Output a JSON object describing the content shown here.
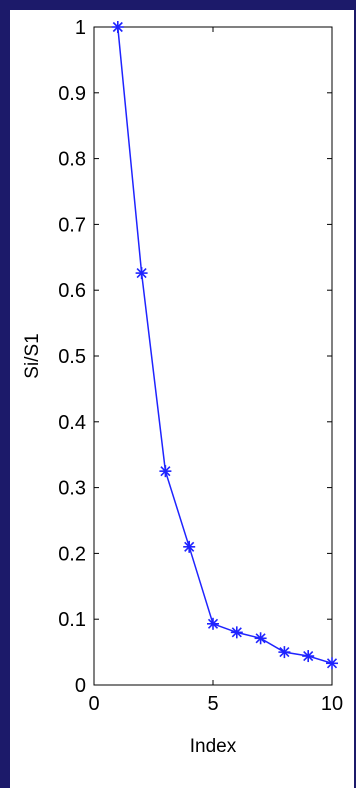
{
  "chart_data": {
    "type": "line",
    "xlabel": "Index",
    "ylabel": "Si/S1",
    "xlim": [
      0,
      10
    ],
    "ylim": [
      0,
      1
    ],
    "xticks": [
      0,
      5,
      10
    ],
    "yticks": [
      0,
      0.1,
      0.2,
      0.3,
      0.4,
      0.5,
      0.6,
      0.7,
      0.8,
      0.9,
      1
    ],
    "xtick_labels": [
      "0",
      "5",
      "10"
    ],
    "ytick_labels": [
      "0",
      "0.1",
      "0.2",
      "0.3",
      "0.4",
      "0.5",
      "0.6",
      "0.7",
      "0.8",
      "0.9",
      "1"
    ],
    "grid": false,
    "marker": "asterisk",
    "line_color": "#1f24ff",
    "series": [
      {
        "x": [
          1,
          2,
          3,
          4,
          5,
          6,
          7,
          8,
          9,
          10
        ],
        "values": [
          1.0,
          0.626,
          0.325,
          0.21,
          0.093,
          0.08,
          0.071,
          0.05,
          0.044,
          0.033
        ]
      }
    ]
  }
}
